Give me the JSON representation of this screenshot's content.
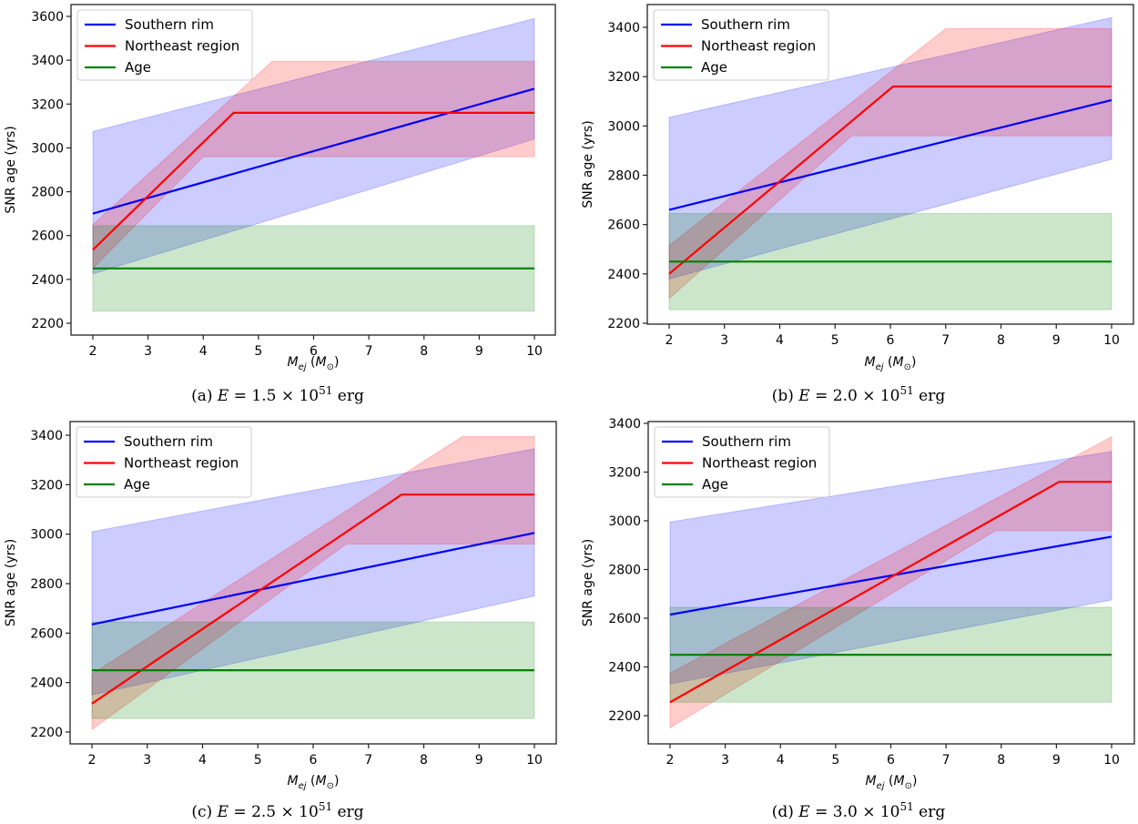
{
  "chart_data": [
    {
      "type": "line",
      "panel_id": "a",
      "caption": {
        "prefix": "(a) ",
        "E_label": "E",
        "equals": " = 1.5 × 10",
        "exponent": "51",
        "unit": " erg"
      },
      "xlabel": "M_ej (M_sun)",
      "xlabel_main": "M",
      "xlabel_sub": "ej",
      "xlabel_unit_open": " (M",
      "xlabel_unit_sub": "⊙",
      "xlabel_unit_close": ")",
      "ylabel": "SNR age (yrs)",
      "xlim": [
        1.6,
        10.4
      ],
      "ylim": [
        2170,
        3620
      ],
      "xticks": [
        2,
        3,
        4,
        5,
        6,
        7,
        8,
        9,
        10
      ],
      "yticks": [
        2200,
        2400,
        2600,
        2800,
        3000,
        3200,
        3400,
        3600
      ],
      "legend": {
        "position": "top-left",
        "entries": [
          "Southern rim",
          "Northeast region",
          "Age"
        ]
      },
      "series": [
        {
          "name": "Southern rim",
          "color": "#0000ff",
          "x": [
            2,
            10
          ],
          "y": [
            2700,
            3270
          ],
          "band": {
            "x": [
              2,
              10
            ],
            "upper": [
              3075,
              3590
            ],
            "lower": [
              2425,
              3040
            ]
          }
        },
        {
          "name": "Northeast region",
          "color": "#ff0000",
          "x": [
            2,
            4.55,
            10
          ],
          "y": [
            2535,
            3160,
            3160
          ],
          "band": {
            "x_upper": [
              2,
              5.25,
              10
            ],
            "upper": [
              2650,
              3395,
              3395
            ],
            "x_lower": [
              2,
              4.0,
              10
            ],
            "lower": [
              2450,
              2960,
              2960
            ]
          }
        },
        {
          "name": "Age",
          "color": "#008000",
          "x": [
            2,
            10
          ],
          "y": [
            2450,
            2450
          ],
          "band": {
            "x": [
              2,
              10
            ],
            "upper": [
              2645,
              2645
            ],
            "lower": [
              2255,
              2255
            ]
          }
        }
      ]
    },
    {
      "type": "line",
      "panel_id": "b",
      "caption": {
        "prefix": "(b) ",
        "E_label": "E",
        "equals": " = 2.0 × 10",
        "exponent": "51",
        "unit": " erg"
      },
      "xlabel": "M_ej (M_sun)",
      "xlabel_main": "M",
      "xlabel_sub": "ej",
      "xlabel_unit_open": " (M",
      "xlabel_unit_sub": "⊙",
      "xlabel_unit_close": ")",
      "ylabel": "SNR age (yrs)",
      "xlim": [
        1.6,
        10.4
      ],
      "ylim": [
        2190,
        3500
      ],
      "xticks": [
        2,
        3,
        4,
        5,
        6,
        7,
        8,
        9,
        10
      ],
      "yticks": [
        2200,
        2400,
        2600,
        2800,
        3000,
        3200,
        3400
      ],
      "legend": {
        "position": "top-left",
        "entries": [
          "Southern rim",
          "Northeast region",
          "Age"
        ]
      },
      "series": [
        {
          "name": "Southern rim",
          "color": "#0000ff",
          "x": [
            2,
            10
          ],
          "y": [
            2660,
            3105
          ],
          "band": {
            "x": [
              2,
              10
            ],
            "upper": [
              3035,
              3440
            ],
            "lower": [
              2380,
              2865
            ]
          }
        },
        {
          "name": "Northeast region",
          "color": "#ff0000",
          "x": [
            2,
            6.05,
            10
          ],
          "y": [
            2400,
            3160,
            3160
          ],
          "band": {
            "x_upper": [
              2,
              7.0,
              10
            ],
            "upper": [
              2515,
              3395,
              3395
            ],
            "x_lower": [
              2,
              5.3,
              10
            ],
            "lower": [
              2300,
              2960,
              2960
            ]
          }
        },
        {
          "name": "Age",
          "color": "#008000",
          "x": [
            2,
            10
          ],
          "y": [
            2450,
            2450
          ],
          "band": {
            "x": [
              2,
              10
            ],
            "upper": [
              2645,
              2645
            ],
            "lower": [
              2255,
              2255
            ]
          }
        }
      ]
    },
    {
      "type": "line",
      "panel_id": "c",
      "caption": {
        "prefix": "(c) ",
        "E_label": "E",
        "equals": " = 2.5 × 10",
        "exponent": "51",
        "unit": " erg"
      },
      "xlabel": "M_ej (M_sun)",
      "xlabel_main": "M",
      "xlabel_sub": "ej",
      "xlabel_unit_open": " (M",
      "xlabel_unit_sub": "⊙",
      "xlabel_unit_close": ")",
      "ylabel": "SNR age (yrs)",
      "xlim": [
        1.6,
        10.4
      ],
      "ylim": [
        2160,
        3460
      ],
      "xticks": [
        2,
        3,
        4,
        5,
        6,
        7,
        8,
        9,
        10
      ],
      "yticks": [
        2200,
        2400,
        2600,
        2800,
        3000,
        3200,
        3400
      ],
      "legend": {
        "position": "top-left",
        "entries": [
          "Southern rim",
          "Northeast region",
          "Age"
        ]
      },
      "series": [
        {
          "name": "Southern rim",
          "color": "#0000ff",
          "x": [
            2,
            10
          ],
          "y": [
            2635,
            3005
          ],
          "band": {
            "x": [
              2,
              10
            ],
            "upper": [
              3010,
              3345
            ],
            "lower": [
              2350,
              2750
            ]
          }
        },
        {
          "name": "Northeast region",
          "color": "#ff0000",
          "x": [
            2,
            7.6,
            10
          ],
          "y": [
            2315,
            3160,
            3160
          ],
          "band": {
            "x_upper": [
              2,
              8.7,
              10
            ],
            "upper": [
              2435,
              3395,
              3395
            ],
            "x_lower": [
              2,
              6.6,
              10
            ],
            "lower": [
              2210,
              2960,
              2960
            ]
          }
        },
        {
          "name": "Age",
          "color": "#008000",
          "x": [
            2,
            10
          ],
          "y": [
            2450,
            2450
          ],
          "band": {
            "x": [
              2,
              10
            ],
            "upper": [
              2645,
              2645
            ],
            "lower": [
              2255,
              2255
            ]
          }
        }
      ]
    },
    {
      "type": "line",
      "panel_id": "d",
      "caption": {
        "prefix": "(d) ",
        "E_label": "E",
        "equals": " = 3.0 × 10",
        "exponent": "51",
        "unit": " erg"
      },
      "xlabel": "M_ej (M_sun)",
      "xlabel_main": "M",
      "xlabel_sub": "ej",
      "xlabel_unit_open": " (M",
      "xlabel_unit_sub": "⊙",
      "xlabel_unit_close": ")",
      "ylabel": "SNR age (yrs)",
      "xlim": [
        1.6,
        10.4
      ],
      "ylim": [
        2085,
        3400
      ],
      "xticks": [
        2,
        3,
        4,
        5,
        6,
        7,
        8,
        9,
        10
      ],
      "yticks": [
        2200,
        2400,
        2600,
        2800,
        3000,
        3200,
        3400
      ],
      "legend": {
        "position": "top-left",
        "entries": [
          "Southern rim",
          "Northeast region",
          "Age"
        ]
      },
      "series": [
        {
          "name": "Southern rim",
          "color": "#0000ff",
          "x": [
            2,
            10
          ],
          "y": [
            2615,
            2935
          ],
          "band": {
            "x": [
              2,
              10
            ],
            "upper": [
              2995,
              3285
            ],
            "lower": [
              2330,
              2675
            ]
          }
        },
        {
          "name": "Northeast region",
          "color": "#ff0000",
          "x": [
            2,
            9.05,
            10
          ],
          "y": [
            2255,
            3160,
            3160
          ],
          "band": {
            "x_upper": [
              2,
              10
            ],
            "upper": [
              2375,
              3345
            ],
            "x_lower": [
              2,
              7.9,
              10
            ],
            "lower": [
              2150,
              2960,
              2960
            ]
          }
        },
        {
          "name": "Age",
          "color": "#008000",
          "x": [
            2,
            10
          ],
          "y": [
            2450,
            2450
          ],
          "band": {
            "x": [
              2,
              10
            ],
            "upper": [
              2645,
              2645
            ],
            "lower": [
              2255,
              2255
            ]
          }
        }
      ]
    }
  ]
}
